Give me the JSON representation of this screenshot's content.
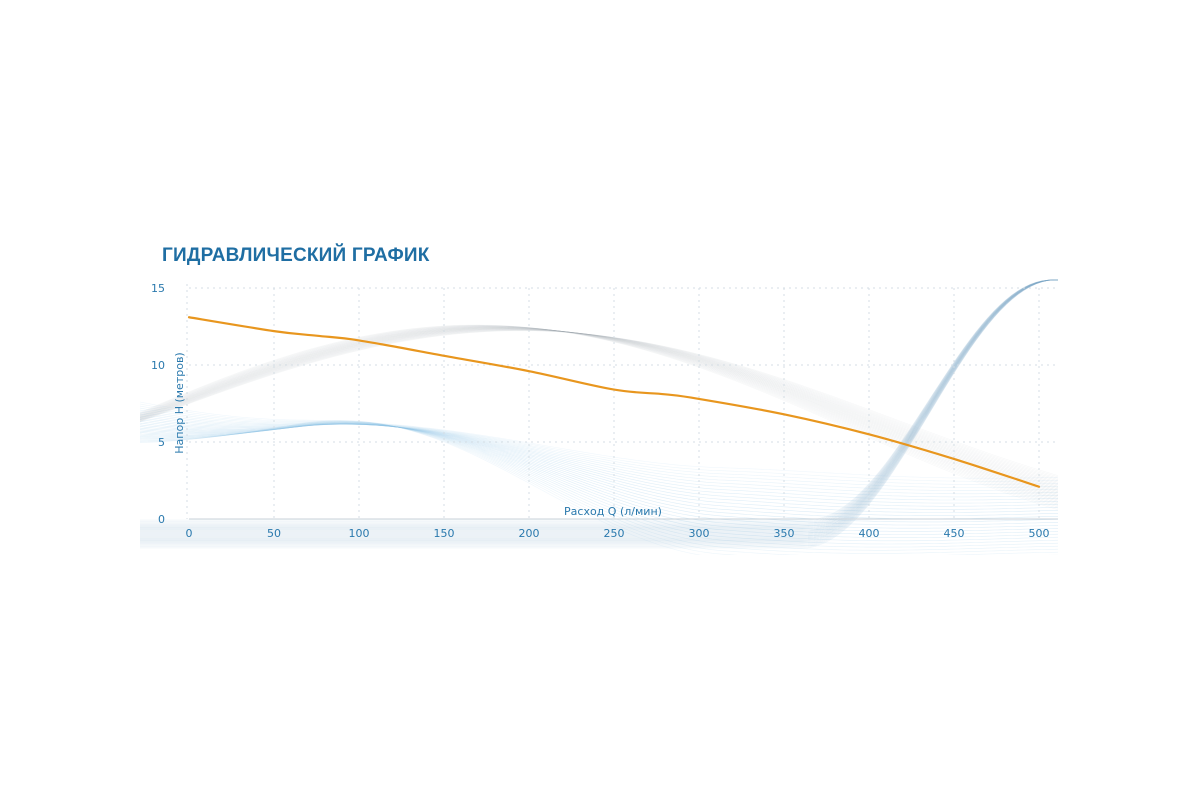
{
  "chart_data": {
    "type": "line",
    "title": "ГИДРАВЛИЧЕСКИЙ ГРАФИК",
    "xlabel": "Расход Q (л/мин)",
    "ylabel": "Напор H (метров)",
    "xlim": [
      0,
      500
    ],
    "ylim": [
      0,
      15
    ],
    "xticks": [
      0,
      50,
      100,
      150,
      200,
      250,
      300,
      350,
      400,
      450,
      500
    ],
    "yticks": [
      0,
      5,
      10,
      15
    ],
    "grid": true,
    "legend": "none",
    "series": [
      {
        "color": "#e8961e",
        "x": [
          0,
          50,
          75,
          100,
          150,
          200,
          250,
          280,
          300,
          350,
          400,
          450,
          500
        ],
        "y": [
          13.1,
          12.2,
          11.9,
          11.6,
          10.6,
          9.6,
          8.4,
          8.1,
          7.8,
          6.8,
          5.5,
          3.9,
          2.1
        ]
      }
    ]
  },
  "colors": {
    "title": "#1f6ea3",
    "axis_text": "#2a79ad",
    "grid": "#d4dde4",
    "axis_line": "#c8d2da",
    "decor": "#2a6f9c"
  }
}
